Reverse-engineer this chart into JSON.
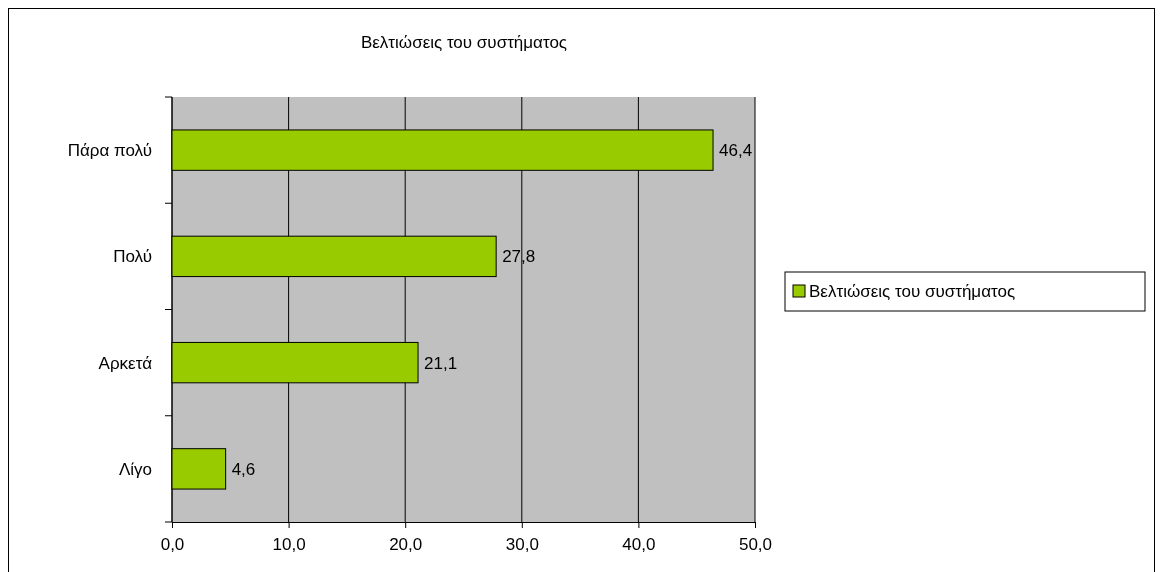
{
  "chart_data": {
    "type": "bar",
    "orientation": "horizontal",
    "title": "Βελτιώσεις του συστήματος",
    "categories": [
      "Πάρα πολύ",
      "Πολύ",
      "Αρκετά",
      "Λίγο"
    ],
    "series": [
      {
        "name": "Βελτιώσεις του συστήματος",
        "color": "#99cc00",
        "values": [
          46.4,
          27.8,
          21.1,
          4.6
        ],
        "value_labels": [
          "46,4",
          "27,8",
          "21,1",
          "4,6"
        ]
      }
    ],
    "xlim": [
      0,
      50
    ],
    "xticks": [
      {
        "value": 0,
        "label": "0,0"
      },
      {
        "value": 10,
        "label": "10,0"
      },
      {
        "value": 20,
        "label": "20,0"
      },
      {
        "value": 30,
        "label": "30,0"
      },
      {
        "value": 40,
        "label": "40,0"
      },
      {
        "value": 50,
        "label": "50,0"
      }
    ],
    "grid": "x",
    "legend": "right"
  }
}
